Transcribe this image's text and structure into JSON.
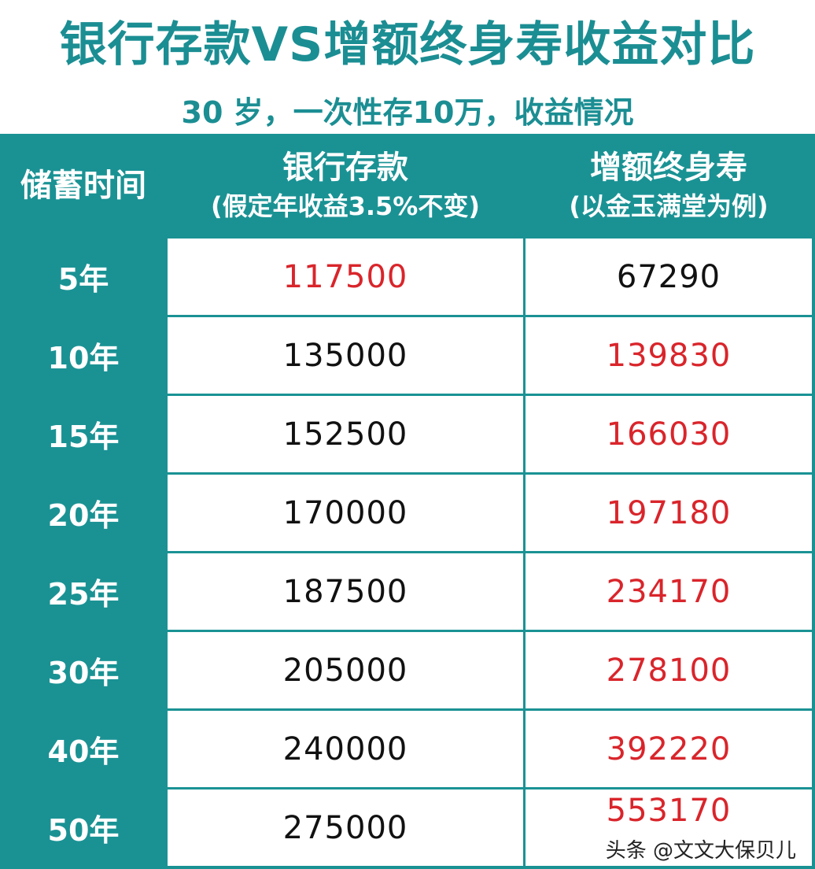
{
  "title": "银行存款VS增额终身寿收益对比",
  "subtitle": "30 岁，一次性存10万，收益情况",
  "header": {
    "col1": "储蓄时间",
    "col2": "银行存款",
    "col2_note": "(假定年收益3.5%不变)",
    "col3": "增额终身寿",
    "col3_note": "(以金玉满堂为例)"
  },
  "colors": {
    "teal": "#1a9294",
    "highlight_red": "#d9252b",
    "normal": "#111111"
  },
  "chart_data": {
    "type": "table",
    "title": "银行存款VS增额终身寿收益对比",
    "subtitle": "30 岁，一次性存10万，收益情况",
    "columns": [
      "储蓄时间",
      "银行存款 (假定年收益3.5%不变)",
      "增额终身寿 (以金玉满堂为例)"
    ],
    "rows": [
      {
        "period": "5年",
        "bank": "117500",
        "insurance": "67290",
        "highlight": "bank"
      },
      {
        "period": "10年",
        "bank": "135000",
        "insurance": "139830",
        "highlight": "insurance"
      },
      {
        "period": "15年",
        "bank": "152500",
        "insurance": "166030",
        "highlight": "insurance"
      },
      {
        "period": "20年",
        "bank": "170000",
        "insurance": "197180",
        "highlight": "insurance"
      },
      {
        "period": "25年",
        "bank": "187500",
        "insurance": "234170",
        "highlight": "insurance"
      },
      {
        "period": "30年",
        "bank": "205000",
        "insurance": "278100",
        "highlight": "insurance"
      },
      {
        "period": "40年",
        "bank": "240000",
        "insurance": "392220",
        "highlight": "insurance"
      },
      {
        "period": "50年",
        "bank": "275000",
        "insurance": "553170",
        "highlight": "insurance"
      }
    ]
  },
  "watermark": "头条 @文文大保贝儿"
}
